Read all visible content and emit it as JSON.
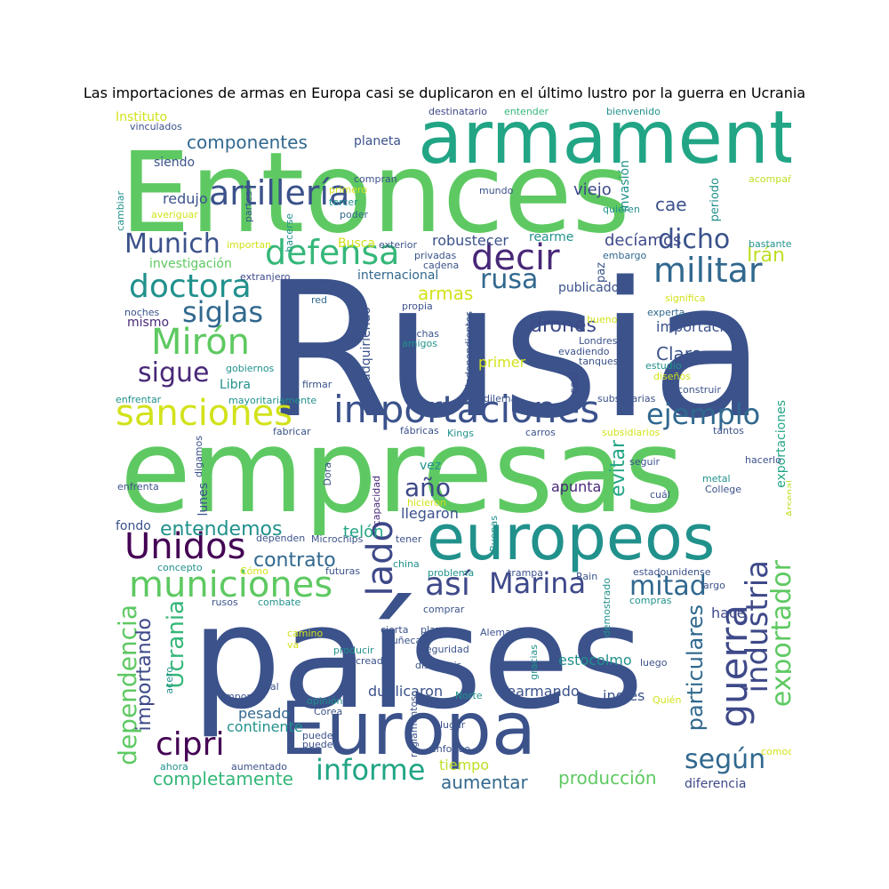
{
  "title": "Las importaciones de armas en Europa casi se duplicaron en el último lustro por la guerra en Ucrania",
  "words": [
    {
      "text": "Rusia",
      "color": "#3b528b"
    },
    {
      "text": "Entonces",
      "color": "#5ec962"
    },
    {
      "text": "empresas",
      "color": "#5ec962"
    },
    {
      "text": "países",
      "color": "#3b528b"
    },
    {
      "text": "armamento",
      "color": "#21a585"
    },
    {
      "text": "Europa",
      "color": "#3b528b"
    },
    {
      "text": "europeos",
      "color": "#21918c"
    },
    {
      "text": "importaciones",
      "color": "#3b528b"
    },
    {
      "text": "sanciones",
      "color": "#d2e21b"
    },
    {
      "text": "municiones",
      "color": "#5ec962"
    },
    {
      "text": "artillería",
      "color": "#3b528b"
    },
    {
      "text": "decir",
      "color": "#482878"
    },
    {
      "text": "defensa",
      "color": "#35b779"
    },
    {
      "text": "militar",
      "color": "#31688e"
    },
    {
      "text": "doctora",
      "color": "#21918c"
    },
    {
      "text": "Mirón",
      "color": "#5ec962"
    },
    {
      "text": "ejemplo",
      "color": "#31688e"
    },
    {
      "text": "siglas",
      "color": "#31688e"
    },
    {
      "text": "Munich",
      "color": "#3b528b"
    },
    {
      "text": "dicho",
      "color": "#3b528b"
    },
    {
      "text": "rusa",
      "color": "#31688e"
    },
    {
      "text": "sigue",
      "color": "#482878"
    },
    {
      "text": "Unidos",
      "color": "#440154"
    },
    {
      "text": "cipri",
      "color": "#440154"
    },
    {
      "text": "informe",
      "color": "#21a585"
    },
    {
      "text": "Marina",
      "color": "#3e4989"
    },
    {
      "text": "mitad",
      "color": "#31688e"
    },
    {
      "text": "así",
      "color": "#3e4989"
    },
    {
      "text": "año",
      "color": "#3e4989"
    },
    {
      "text": "lado",
      "color": "#3e4989"
    },
    {
      "text": "guerra",
      "color": "#3e4989"
    },
    {
      "text": "industria",
      "color": "#3e4989"
    },
    {
      "text": "exportador",
      "color": "#5ec962"
    },
    {
      "text": "según",
      "color": "#31688e"
    },
    {
      "text": "dependencia",
      "color": "#5ec962"
    },
    {
      "text": "Ucrania",
      "color": "#35b779"
    },
    {
      "text": "importando",
      "color": "#3e4989"
    },
    {
      "text": "particulares",
      "color": "#31688e"
    },
    {
      "text": "componentes",
      "color": "#31688e"
    },
    {
      "text": "entendemos",
      "color": "#21918c"
    },
    {
      "text": "contrato",
      "color": "#31688e"
    },
    {
      "text": "completamente",
      "color": "#35b779"
    },
    {
      "text": "aumentar",
      "color": "#31688e"
    },
    {
      "text": "producción",
      "color": "#5ec962"
    },
    {
      "text": "drones",
      "color": "#3e4989"
    },
    {
      "text": "armas",
      "color": "#d2e21b"
    },
    {
      "text": "evitar",
      "color": "#21a585"
    },
    {
      "text": "Irán",
      "color": "#bddf26"
    },
    {
      "text": "decíamos",
      "color": "#3e4989"
    },
    {
      "text": "robustecer",
      "color": "#3b528b"
    },
    {
      "text": "cae",
      "color": "#3b528b"
    },
    {
      "text": "viejo",
      "color": "#3e4989"
    },
    {
      "text": "Claro",
      "color": "#3b528b"
    },
    {
      "text": "importación",
      "color": "#3b528b"
    },
    {
      "text": "hace",
      "color": "#3e4989"
    },
    {
      "text": "estocolmo",
      "color": "#21918c"
    },
    {
      "text": "inglés",
      "color": "#3b528b"
    },
    {
      "text": "rearmando",
      "color": "#3b528b"
    },
    {
      "text": "duplicaron",
      "color": "#3b528b"
    },
    {
      "text": "pesado",
      "color": "#31688e"
    },
    {
      "text": "continente",
      "color": "#21918c"
    },
    {
      "text": "llegaron",
      "color": "#3b528b"
    },
    {
      "text": "apunta",
      "color": "#482878"
    },
    {
      "text": "telón",
      "color": "#21a585"
    },
    {
      "text": "primer",
      "color": "#d2e21b"
    },
    {
      "text": "tiempo",
      "color": "#bddf26"
    },
    {
      "text": "diferencia",
      "color": "#3e4989"
    },
    {
      "text": "exportaciones",
      "color": "#21a585"
    },
    {
      "text": "investigación",
      "color": "#5ec962"
    },
    {
      "text": "internacional",
      "color": "#31688e"
    },
    {
      "text": "publicado",
      "color": "#3b528b"
    },
    {
      "text": "redujo",
      "color": "#3b528b"
    },
    {
      "text": "siendo",
      "color": "#3b528b"
    },
    {
      "text": "planeta",
      "color": "#3b528b"
    },
    {
      "text": "Libra",
      "color": "#21918c"
    },
    {
      "text": "lunes",
      "color": "#3b528b"
    },
    {
      "text": "fondo",
      "color": "#3b528b"
    },
    {
      "text": "vez",
      "color": "#21918c"
    },
    {
      "text": "mismo",
      "color": "#482878"
    },
    {
      "text": "Instituto",
      "color": "#d2e21b"
    },
    {
      "text": "Busca",
      "color": "#d2e21b"
    },
    {
      "text": "rearme",
      "color": "#21918c"
    },
    {
      "text": "adquiriendo",
      "color": "#3b528b"
    },
    {
      "text": "invasión",
      "color": "#21918c"
    },
    {
      "text": "periodo",
      "color": "#21918c"
    },
    {
      "text": "paz",
      "color": "#3b528b"
    },
    {
      "text": "casi",
      "color": "#3e4989"
    },
    {
      "text": "destinatario",
      "color": "#3e4989"
    },
    {
      "text": "entender",
      "color": "#35b779"
    },
    {
      "text": "bienvenido",
      "color": "#21918c"
    },
    {
      "text": "vinculados",
      "color": "#3b528b"
    },
    {
      "text": "compran",
      "color": "#3b528b"
    },
    {
      "text": "primero",
      "color": "#d2e21b"
    },
    {
      "text": "tercer",
      "color": "#21918c"
    },
    {
      "text": "poder",
      "color": "#31688e"
    },
    {
      "text": "mundo",
      "color": "#3b528b"
    },
    {
      "text": "quieren",
      "color": "#21918c"
    },
    {
      "text": "acompaña",
      "color": "#bddf26"
    },
    {
      "text": "cambiar",
      "color": "#21918c"
    },
    {
      "text": "averiguar",
      "color": "#d2e21b"
    },
    {
      "text": "partes",
      "color": "#3b528b"
    },
    {
      "text": "hacerse",
      "color": "#21918c"
    },
    {
      "text": "importan",
      "color": "#d2e21b"
    },
    {
      "text": "exterior",
      "color": "#3b528b"
    },
    {
      "text": "privadas",
      "color": "#3b528b"
    },
    {
      "text": "cadena",
      "color": "#3b528b"
    },
    {
      "text": "embargo",
      "color": "#31688e"
    },
    {
      "text": "bastante",
      "color": "#21918c"
    },
    {
      "text": "extranjero",
      "color": "#3e4989"
    },
    {
      "text": "red",
      "color": "#31688e"
    },
    {
      "text": "propia",
      "color": "#3b528b"
    },
    {
      "text": "significa",
      "color": "#d2e21b"
    },
    {
      "text": "noches",
      "color": "#3b528b"
    },
    {
      "text": "Muchas",
      "color": "#3b528b"
    },
    {
      "text": "amigos",
      "color": "#21918c"
    },
    {
      "text": "independientes",
      "color": "#3b528b"
    },
    {
      "text": "bueno",
      "color": "#d2e21b"
    },
    {
      "text": "experta",
      "color": "#31688e"
    },
    {
      "text": "Londres",
      "color": "#3b528b"
    },
    {
      "text": "evadiendo",
      "color": "#3b528b"
    },
    {
      "text": "tanques",
      "color": "#3b528b"
    },
    {
      "text": "estudio",
      "color": "#21918c"
    },
    {
      "text": "diseños",
      "color": "#d2e21b"
    },
    {
      "text": "gobiernos",
      "color": "#21918c"
    },
    {
      "text": "firmar",
      "color": "#3b528b"
    },
    {
      "text": "dilema",
      "color": "#3b528b"
    },
    {
      "text": "construir",
      "color": "#3b528b"
    },
    {
      "text": "enfrentar",
      "color": "#21918c"
    },
    {
      "text": "mayoritariamente",
      "color": "#21918c"
    },
    {
      "text": "subsidiarias",
      "color": "#3b528b"
    },
    {
      "text": "fabricar",
      "color": "#3b528b"
    },
    {
      "text": "fábricas",
      "color": "#3b528b"
    },
    {
      "text": "Kings",
      "color": "#21918c"
    },
    {
      "text": "carros",
      "color": "#3b528b"
    },
    {
      "text": "subsidiarios",
      "color": "#d2e21b"
    },
    {
      "text": "tantos",
      "color": "#3b528b"
    },
    {
      "text": "digamos",
      "color": "#3b528b"
    },
    {
      "text": "seguir",
      "color": "#3b528b"
    },
    {
      "text": "hacerlo",
      "color": "#3b528b"
    },
    {
      "text": "enfrenta",
      "color": "#3b528b"
    },
    {
      "text": "Dora",
      "color": "#3b528b"
    },
    {
      "text": "capacidad",
      "color": "#482878"
    },
    {
      "text": "metal",
      "color": "#21918c"
    },
    {
      "text": "cuál",
      "color": "#3b528b"
    },
    {
      "text": "College",
      "color": "#3b528b"
    },
    {
      "text": "Arsenal",
      "color": "#bddf26"
    },
    {
      "text": "hicieron",
      "color": "#d2e21b"
    },
    {
      "text": "dependen",
      "color": "#3b528b"
    },
    {
      "text": "Buenas",
      "color": "#21918c"
    },
    {
      "text": "tener",
      "color": "#3b528b"
    },
    {
      "text": "Microchips",
      "color": "#3b528b"
    },
    {
      "text": "concepto",
      "color": "#21918c"
    },
    {
      "text": "Cómo",
      "color": "#d2e21b"
    },
    {
      "text": "futuras",
      "color": "#3b528b"
    },
    {
      "text": "china",
      "color": "#21918c"
    },
    {
      "text": "trampa",
      "color": "#3b528b"
    },
    {
      "text": "problema",
      "color": "#21918c"
    },
    {
      "text": "estadounidense",
      "color": "#3b528b"
    },
    {
      "text": "Rain",
      "color": "#3b528b"
    },
    {
      "text": "largo",
      "color": "#3b528b"
    },
    {
      "text": "demostrado",
      "color": "#21918c"
    },
    {
      "text": "rusos",
      "color": "#3b528b"
    },
    {
      "text": "combate",
      "color": "#21918c"
    },
    {
      "text": "comprar",
      "color": "#3b528b"
    },
    {
      "text": "compras",
      "color": "#21918c"
    },
    {
      "text": "camino",
      "color": "#d2e21b"
    },
    {
      "text": "cierta",
      "color": "#3b528b"
    },
    {
      "text": "plazo",
      "color": "#3b528b"
    },
    {
      "text": "Alemania",
      "color": "#3b528b"
    },
    {
      "text": "va",
      "color": "#d2e21b"
    },
    {
      "text": "muñeca",
      "color": "#3b528b"
    },
    {
      "text": "seguridad",
      "color": "#3b528b"
    },
    {
      "text": "producir",
      "color": "#21918c"
    },
    {
      "text": "creado",
      "color": "#3b528b"
    },
    {
      "text": "acero",
      "color": "#21918c"
    },
    {
      "text": "gracias",
      "color": "#21918c"
    },
    {
      "text": "disminuir",
      "color": "#3b528b"
    },
    {
      "text": "luego",
      "color": "#3b528b"
    },
    {
      "text": "importa",
      "color": "#3b528b"
    },
    {
      "text": "final",
      "color": "#3b528b"
    },
    {
      "text": "opinión",
      "color": "#21918c"
    },
    {
      "text": "Corea",
      "color": "#3b528b"
    },
    {
      "text": "Norte",
      "color": "#21918c"
    },
    {
      "text": "Quién",
      "color": "#d2e21b"
    },
    {
      "text": "reglamentos",
      "color": "#3b528b"
    },
    {
      "text": "lugar",
      "color": "#3b528b"
    },
    {
      "text": "pueden",
      "color": "#3b528b"
    },
    {
      "text": "puede",
      "color": "#3b528b"
    },
    {
      "text": "enfoque",
      "color": "#3b528b"
    },
    {
      "text": "ahora",
      "color": "#21918c"
    },
    {
      "text": "aumentado",
      "color": "#3b528b"
    },
    {
      "text": "comoo",
      "color": "#d2e21b"
    }
  ]
}
